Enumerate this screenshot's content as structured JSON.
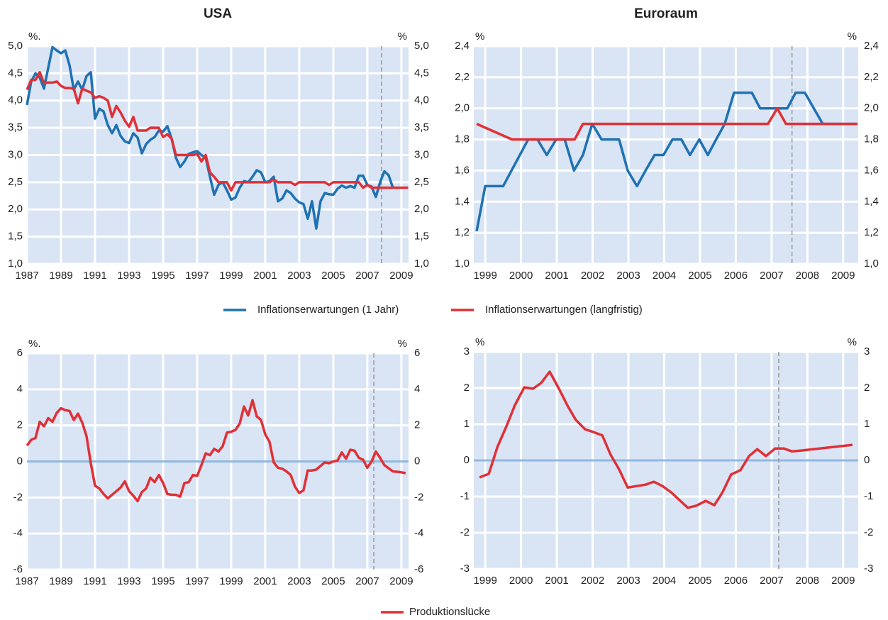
{
  "chart_data": [
    {
      "type": "line",
      "title": "USA",
      "y_unit_left": "%.",
      "y_unit_right": "%",
      "background": "#d9e4f4",
      "grid": true,
      "grid_color": "#ffffff",
      "xlim": [
        1987,
        2009.42
      ],
      "xticks": [
        1987,
        1989,
        1991,
        1993,
        1995,
        1997,
        1999,
        2001,
        2003,
        2005,
        2007,
        2009
      ],
      "ylim": [
        1,
        5
      ],
      "yticks": [
        {
          "value": 1,
          "label": "1,0"
        },
        {
          "value": 1.5,
          "label": "1,5"
        },
        {
          "value": 2,
          "label": "2,0"
        },
        {
          "value": 2.5,
          "label": "2,5"
        },
        {
          "value": 3,
          "label": "3,0"
        },
        {
          "value": 3.5,
          "label": "3,5"
        },
        {
          "value": 4,
          "label": "4,0"
        },
        {
          "value": 4.5,
          "label": "4,5"
        },
        {
          "value": 5,
          "label": "5,0"
        }
      ],
      "dashed_line_x": 2007.83,
      "x": [
        1987,
        1987.25,
        1987.5,
        1987.75,
        1988,
        1988.25,
        1988.5,
        1988.75,
        1989,
        1989.25,
        1989.5,
        1989.75,
        1990,
        1990.25,
        1990.5,
        1990.75,
        1991,
        1991.25,
        1991.5,
        1991.75,
        1992,
        1992.25,
        1992.5,
        1992.75,
        1993,
        1993.25,
        1993.5,
        1993.75,
        1994,
        1994.25,
        1994.5,
        1994.75,
        1995,
        1995.25,
        1995.5,
        1995.75,
        1996,
        1996.25,
        1996.5,
        1996.75,
        1997,
        1997.25,
        1997.5,
        1997.75,
        1998,
        1998.25,
        1998.5,
        1998.75,
        1999,
        1999.25,
        1999.5,
        1999.75,
        2000,
        2000.25,
        2000.5,
        2000.75,
        2001,
        2001.25,
        2001.5,
        2001.75,
        2002,
        2002.25,
        2002.5,
        2002.75,
        2003,
        2003.25,
        2003.5,
        2003.75,
        2004,
        2004.25,
        2004.5,
        2004.75,
        2005,
        2005.25,
        2005.5,
        2005.75,
        2006,
        2006.25,
        2006.5,
        2006.75,
        2007,
        2007.25,
        2007.5,
        2007.75,
        2008,
        2008.25,
        2008.5,
        2008.75,
        2009,
        2009.25,
        2009.4
      ],
      "series": [
        {
          "name": "Inflationserwartungen (1 Jahr)",
          "color": "#1f72b3",
          "values": [
            3.92,
            4.35,
            4.5,
            4.42,
            4.22,
            4.6,
            4.98,
            4.92,
            4.87,
            4.92,
            4.65,
            4.2,
            4.35,
            4.2,
            4.45,
            4.52,
            3.67,
            3.85,
            3.8,
            3.55,
            3.4,
            3.55,
            3.35,
            3.25,
            3.22,
            3.4,
            3.32,
            3.03,
            3.2,
            3.28,
            3.33,
            3.45,
            3.43,
            3.53,
            3.3,
            2.95,
            2.78,
            2.88,
            3.02,
            3.05,
            3.07,
            3.0,
            2.95,
            2.6,
            2.27,
            2.45,
            2.5,
            2.35,
            2.18,
            2.22,
            2.4,
            2.52,
            2.5,
            2.6,
            2.72,
            2.68,
            2.5,
            2.52,
            2.6,
            2.15,
            2.2,
            2.35,
            2.3,
            2.2,
            2.13,
            2.1,
            1.83,
            2.15,
            1.65,
            2.15,
            2.3,
            2.28,
            2.27,
            2.38,
            2.44,
            2.4,
            2.43,
            2.4,
            2.62,
            2.62,
            2.45,
            2.42,
            2.23,
            2.5,
            2.7,
            2.63,
            2.4,
            null,
            null,
            null,
            null
          ]
        },
        {
          "name": "Inflationserwartungen (langfristig)",
          "color": "#e03036",
          "values": [
            4.2,
            4.38,
            4.38,
            4.52,
            4.32,
            4.33,
            4.33,
            4.35,
            4.27,
            4.23,
            4.23,
            4.22,
            3.95,
            4.22,
            4.18,
            4.15,
            4.05,
            4.08,
            4.05,
            4.0,
            3.7,
            3.9,
            3.78,
            3.63,
            3.52,
            3.7,
            3.45,
            3.45,
            3.45,
            3.5,
            3.5,
            3.5,
            3.33,
            3.38,
            3.3,
            3.0,
            3.0,
            3.0,
            3.0,
            3.0,
            3.02,
            2.88,
            3.0,
            2.68,
            2.6,
            2.5,
            2.5,
            2.5,
            2.35,
            2.5,
            2.5,
            2.5,
            2.5,
            2.5,
            2.5,
            2.5,
            2.5,
            2.5,
            2.55,
            2.5,
            2.5,
            2.5,
            2.5,
            2.45,
            2.5,
            2.5,
            2.5,
            2.5,
            2.5,
            2.5,
            2.5,
            2.45,
            2.5,
            2.5,
            2.5,
            2.5,
            2.5,
            2.5,
            2.5,
            2.4,
            2.45,
            2.4,
            2.4,
            2.4,
            2.4,
            2.4,
            2.4,
            2.4,
            2.4,
            2.4,
            2.4
          ]
        }
      ]
    },
    {
      "type": "line",
      "title": "Euroraum",
      "y_unit_left": "%",
      "y_unit_right": "%",
      "background": "#d9e4f4",
      "grid": true,
      "grid_color": "#ffffff",
      "xlim": [
        1998.68,
        2009.42
      ],
      "xticks": [
        1999,
        2000,
        2001,
        2002,
        2003,
        2004,
        2005,
        2006,
        2007,
        2008,
        2009
      ],
      "ylim": [
        1,
        2.4
      ],
      "yticks": [
        {
          "value": 1,
          "label": "1,0"
        },
        {
          "value": 1.2,
          "label": "1,2"
        },
        {
          "value": 1.4,
          "label": "1,4"
        },
        {
          "value": 1.6,
          "label": "1,6"
        },
        {
          "value": 1.8,
          "label": "1,8"
        },
        {
          "value": 2,
          "label": "2,0"
        },
        {
          "value": 2.2,
          "label": "2,2"
        },
        {
          "value": 2.4,
          "label": "2,4"
        }
      ],
      "dashed_line_x": 2007.57,
      "series": [
        {
          "name": "Inflationserwartungen (1 Jahr)",
          "color": "#1f72b3",
          "x": [
            1998.76,
            1999,
            1999.5,
            2000.2,
            2000.46,
            2000.72,
            2000.98,
            2001.22,
            2001.48,
            2001.73,
            2001.99,
            2002.25,
            2002.74,
            2002.98,
            2003.24,
            2003.48,
            2003.73,
            2003.98,
            2004.23,
            2004.48,
            2004.72,
            2004.98,
            2005.22,
            2005.45,
            2005.69,
            2005.95,
            2006.45,
            2006.68,
            2007.44,
            2007.67,
            2007.93,
            2008.18,
            2008.43,
            2009.4
          ],
          "values": [
            1.21,
            1.5,
            1.5,
            1.8,
            1.8,
            1.7,
            1.8,
            1.8,
            1.6,
            1.7,
            1.9,
            1.8,
            1.8,
            1.6,
            1.5,
            1.6,
            1.7,
            1.7,
            1.8,
            1.8,
            1.7,
            1.8,
            1.7,
            1.8,
            1.9,
            2.1,
            2.1,
            2.0,
            2.0,
            2.1,
            2.1,
            2.0,
            1.9,
            1.9
          ]
        },
        {
          "name": "Inflationserwartungen (langfristig)",
          "color": "#e03036",
          "x": [
            1998.76,
            1999.75,
            2001.5,
            2001.73,
            2006.9,
            2007.16,
            2007.4,
            2009.4
          ],
          "values": [
            1.9,
            1.8,
            1.8,
            1.9,
            1.9,
            2.0,
            1.9,
            1.9
          ]
        }
      ]
    },
    {
      "type": "line",
      "y_unit_left": "%.",
      "y_unit_right": "%",
      "background": "#d9e4f4",
      "grid": true,
      "grid_color": "#ffffff",
      "zero_line": true,
      "zero_line_color": "#8fb9e2",
      "xlim": [
        1987,
        2009.42
      ],
      "xticks": [
        1987,
        1989,
        1991,
        1993,
        1995,
        1997,
        1999,
        2001,
        2003,
        2005,
        2007,
        2009
      ],
      "ylim": [
        -6,
        6
      ],
      "yticks": [
        -6,
        -4,
        -2,
        0,
        2,
        4,
        6
      ],
      "dashed_line_x": 2007.38,
      "x": [
        1987,
        1987.25,
        1987.5,
        1987.75,
        1988,
        1988.25,
        1988.5,
        1988.75,
        1989,
        1989.25,
        1989.5,
        1989.75,
        1990,
        1990.25,
        1990.5,
        1990.75,
        1991,
        1991.25,
        1991.5,
        1991.75,
        1992,
        1992.25,
        1992.5,
        1992.75,
        1993,
        1993.25,
        1993.5,
        1993.75,
        1994,
        1994.25,
        1994.5,
        1994.75,
        1995,
        1995.25,
        1995.5,
        1995.75,
        1996,
        1996.25,
        1996.5,
        1996.75,
        1997,
        1997.25,
        1997.5,
        1997.75,
        1998,
        1998.25,
        1998.5,
        1998.75,
        1999,
        1999.25,
        1999.5,
        1999.75,
        2000,
        2000.25,
        2000.5,
        2000.75,
        2001,
        2001.25,
        2001.5,
        2001.75,
        2002,
        2002.25,
        2002.5,
        2002.75,
        2003,
        2003.25,
        2003.5,
        2003.75,
        2004,
        2004.25,
        2004.5,
        2004.75,
        2005,
        2005.25,
        2005.5,
        2005.75,
        2006,
        2006.25,
        2006.5,
        2006.75,
        2007,
        2007.25,
        2007.5,
        2007.75,
        2008,
        2008.5,
        2009,
        2009.25
      ],
      "series": [
        {
          "name": "Produktionslücke",
          "color": "#e03036",
          "values": [
            0.88,
            1.2,
            1.3,
            2.2,
            1.95,
            2.4,
            2.2,
            2.7,
            2.95,
            2.85,
            2.8,
            2.3,
            2.65,
            2.15,
            1.4,
            -0.1,
            -1.35,
            -1.5,
            -1.8,
            -2.05,
            -1.85,
            -1.65,
            -1.45,
            -1.1,
            -1.65,
            -1.9,
            -2.2,
            -1.7,
            -1.5,
            -0.9,
            -1.15,
            -0.75,
            -1.2,
            -1.8,
            -1.85,
            -1.85,
            -1.95,
            -1.2,
            -1.15,
            -0.75,
            -0.8,
            -0.2,
            0.45,
            0.35,
            0.7,
            0.55,
            0.85,
            1.6,
            1.65,
            1.75,
            2.1,
            3.05,
            2.55,
            3.4,
            2.5,
            2.3,
            1.5,
            1.1,
            -0.05,
            -0.35,
            -0.4,
            -0.55,
            -0.75,
            -1.4,
            -1.75,
            -1.6,
            -0.5,
            -0.5,
            -0.45,
            -0.25,
            -0.05,
            -0.1,
            0.0,
            0.05,
            0.5,
            0.15,
            0.65,
            0.6,
            0.2,
            0.1,
            -0.35,
            0.0,
            0.55,
            0.2,
            -0.2,
            -0.55,
            -0.6,
            -0.65
          ]
        }
      ]
    },
    {
      "type": "line",
      "y_unit_left": "%",
      "y_unit_right": "%",
      "background": "#d9e4f4",
      "grid": true,
      "grid_color": "#ffffff",
      "zero_line": true,
      "zero_line_color": "#8fb9e2",
      "xlim": [
        1998.68,
        2009.42
      ],
      "xticks": [
        1999,
        2000,
        2001,
        2002,
        2003,
        2004,
        2005,
        2006,
        2007,
        2008,
        2009
      ],
      "ylim": [
        -3,
        3
      ],
      "yticks": [
        -3,
        -2,
        -1,
        0,
        1,
        2,
        3
      ],
      "dashed_line_x": 2007.2,
      "x": [
        1998.84,
        1999.1,
        1999.34,
        1999.6,
        1999.83,
        2000.09,
        2000.33,
        2000.56,
        2000.8,
        2001.06,
        2001.3,
        2001.53,
        2001.79,
        2002.03,
        2002.27,
        2002.5,
        2002.74,
        2002.98,
        2003.48,
        2003.71,
        2003.95,
        2004.19,
        2004.43,
        2004.66,
        2004.9,
        2005.16,
        2005.4,
        2005.63,
        2005.87,
        2006.13,
        2006.37,
        2006.6,
        2006.84,
        2007.1,
        2007.34,
        2007.57,
        2007.81,
        2009.26
      ],
      "series": [
        {
          "name": "Produktionslücke",
          "color": "#e03036",
          "values": [
            -0.47,
            -0.37,
            0.37,
            0.96,
            1.53,
            2.02,
            1.98,
            2.14,
            2.45,
            1.98,
            1.51,
            1.12,
            0.86,
            0.78,
            0.69,
            0.16,
            -0.25,
            -0.75,
            -0.67,
            -0.59,
            -0.71,
            -0.88,
            -1.1,
            -1.31,
            -1.25,
            -1.12,
            -1.24,
            -0.88,
            -0.39,
            -0.27,
            0.12,
            0.31,
            0.12,
            0.33,
            0.33,
            0.25,
            0.27,
            0.43
          ]
        }
      ]
    }
  ]
}
